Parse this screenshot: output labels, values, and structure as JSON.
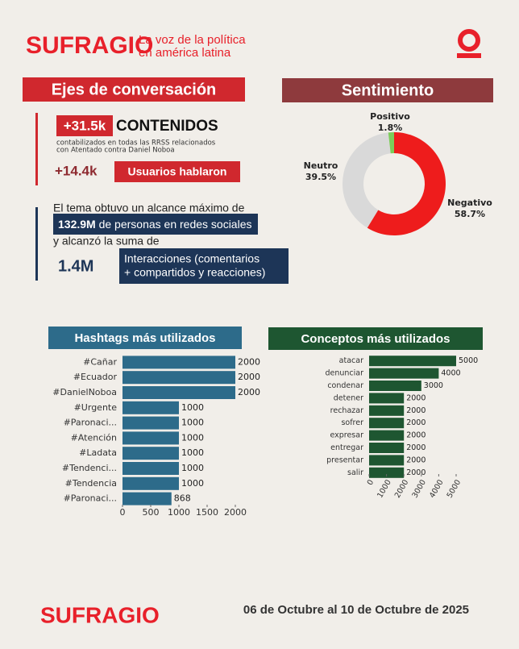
{
  "header": {
    "logo": "SUFRAGIO",
    "tagline": [
      "La voz de la política",
      "en américa latina"
    ]
  },
  "ejes": {
    "title": "Ejes de conversación",
    "contenidos": {
      "value": "+31.5k",
      "label": "CONTENIDOS",
      "note": [
        "contabilizados en todas las RRSS relacionados",
        "con Atentado contra Daniel Noboa"
      ]
    },
    "usuarios": {
      "value": "+14.4k",
      "label": "Usuarios hablaron"
    },
    "alcance": {
      "intro": "El tema obtuvo un alcance máximo de",
      "value": "132.9M",
      "label": "de personas en redes sociales"
    },
    "interacciones": {
      "intro": "y alcanzó la suma de",
      "value": "1.4M",
      "label": [
        "Interacciones (comentarios",
        "+ compartidos y reacciones)"
      ]
    }
  },
  "chart_data": [
    {
      "type": "pie",
      "title": "Sentimiento",
      "categories": [
        "Negativo",
        "Neutro",
        "Positivo"
      ],
      "values": [
        58.7,
        39.5,
        1.8
      ],
      "value_labels": [
        "58.7%",
        "39.5%",
        "1.8%"
      ],
      "colors": [
        "#ee1c1c",
        "#d9d9d9",
        "#7ccc5a"
      ]
    },
    {
      "type": "barh",
      "title": "Hashtags más utilizados",
      "categories": [
        "#Cañar",
        "#Ecuador",
        "#DanielNoboa",
        "#Urgente",
        "#Paronaci...",
        "#Atención",
        "#Ladata",
        "#Tendenci...",
        "#Tendencia",
        "#Paronaci..."
      ],
      "values": [
        2000,
        2000,
        2000,
        1000,
        1000,
        1000,
        1000,
        1000,
        1000,
        868
      ],
      "color": "#2d6b8a",
      "xlim": [
        0,
        2000
      ],
      "xticks": [
        0,
        500,
        1000,
        1500,
        2000
      ]
    },
    {
      "type": "barh",
      "title": "Conceptos más utilizados",
      "categories": [
        "atacar",
        "denunciar",
        "condenar",
        "detener",
        "rechazar",
        "sofrer",
        "expresar",
        "entregar",
        "presentar",
        "salir"
      ],
      "values": [
        5000,
        4000,
        3000,
        2000,
        2000,
        2000,
        2000,
        2000,
        2000,
        2000
      ],
      "color": "#1e5631",
      "xlim": [
        0,
        5000
      ],
      "xticks": [
        0,
        1000,
        2000,
        3000,
        4000,
        5000
      ]
    }
  ],
  "footer": {
    "logo": "SUFRAGIO",
    "date": "06 de Octubre al 10 de Octubre de 2025"
  }
}
